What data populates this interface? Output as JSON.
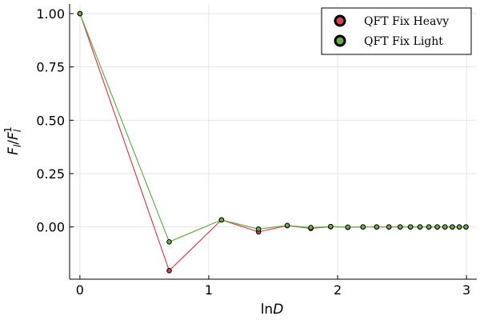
{
  "chart_data": {
    "type": "line",
    "xlabel": "lnD",
    "ylabel": "F_l/F_l^1",
    "xlim": [
      -0.08,
      3.08
    ],
    "ylim": [
      -0.245,
      1.045
    ],
    "grid": true,
    "legend_position": "top-right",
    "x_ticks": [
      0,
      1,
      2,
      3
    ],
    "y_ticks": [
      0.0,
      0.25,
      0.5,
      0.75,
      1.0
    ],
    "x_tick_labels": [
      "0",
      "1",
      "2",
      "3"
    ],
    "y_tick_labels": [
      "0.00",
      "0.25",
      "0.50",
      "0.75",
      "1.00"
    ],
    "x": [
      0.0,
      0.693,
      1.099,
      1.386,
      1.609,
      1.792,
      1.946,
      2.079,
      2.197,
      2.303,
      2.398,
      2.485,
      2.565,
      2.639,
      2.708,
      2.773,
      2.833,
      2.89,
      2.944,
      2.996
    ],
    "series": [
      {
        "name": "QFT Fix Heavy",
        "color": "#d9414e",
        "values": [
          1.0,
          -0.205,
          0.033,
          -0.023,
          0.006,
          -0.007,
          0.001,
          -0.002,
          0.0,
          0.0,
          0.0,
          0.0,
          0.0,
          0.0,
          0.0,
          0.0,
          0.0,
          0.0,
          0.0,
          0.0
        ]
      },
      {
        "name": "QFT Fix Light",
        "color": "#6aae47",
        "values": [
          1.0,
          -0.07,
          0.033,
          -0.01,
          0.007,
          -0.003,
          0.002,
          -0.001,
          0.0,
          0.0,
          0.0,
          0.0,
          0.0,
          0.0,
          0.0,
          0.0,
          0.0,
          0.0,
          0.0,
          0.0
        ]
      }
    ]
  }
}
